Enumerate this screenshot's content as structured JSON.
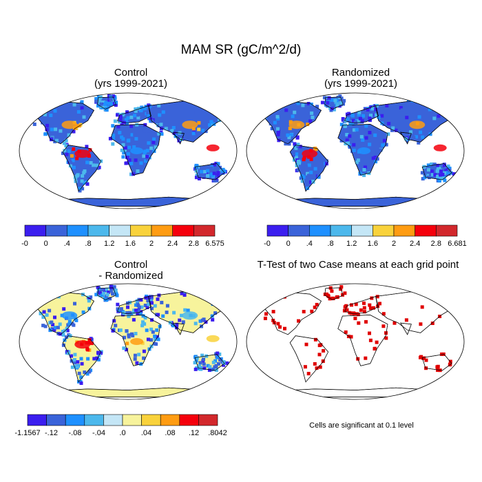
{
  "figure": {
    "title": "MAM SR (gC/m^2/d)",
    "note": "Cells are significant at 0.1 level"
  },
  "panels": [
    {
      "title": "Control",
      "subtitle": "(yrs 1999-2021)"
    },
    {
      "title": "Randomized",
      "subtitle": "(yrs 1999-2021)"
    },
    {
      "title": "Control",
      "subtitle": "- Randomized"
    },
    {
      "title": "T-Test of two Case means at each grid point",
      "subtitle": ""
    }
  ],
  "colors": {
    "abs_scale": [
      "#3b1eef",
      "#3a63d9",
      "#1e90ff",
      "#4cb8ec",
      "#c4e6f6",
      "#f9d23b",
      "#ff9c12",
      "#f5000c",
      "#d2282c"
    ],
    "diff_scale": [
      "#3b1eef",
      "#3a63d9",
      "#1e90ff",
      "#4cb8ec",
      "#c4e6f6",
      "#f7f39c",
      "#f9d23b",
      "#ff9c12",
      "#f5000c",
      "#d2282c"
    ],
    "significance": "#e00000",
    "antarctica_abs": "#3a63d9",
    "antarctica_diff": "#f7f39c"
  },
  "chart_data": [
    {
      "type": "heatmap",
      "title": "Control",
      "subtitle": "(yrs 1999-2021)",
      "colorbar_labels": [
        "-0",
        "0",
        ".4",
        ".8",
        "1.2",
        "1.6",
        "2",
        "2.4",
        "2.8",
        "6.575"
      ]
    },
    {
      "type": "heatmap",
      "title": "Randomized",
      "subtitle": "(yrs 1999-2021)",
      "colorbar_labels": [
        "-0",
        "0",
        ".4",
        ".8",
        "1.2",
        "1.6",
        "2",
        "2.4",
        "2.8",
        "6.681"
      ]
    },
    {
      "type": "heatmap",
      "title": "Control",
      "subtitle": "- Randomized",
      "colorbar_labels": [
        "-1.1567",
        "-.12",
        "-.08",
        "-.04",
        ".0",
        ".04",
        ".08",
        ".12",
        ".8042"
      ]
    },
    {
      "type": "heatmap",
      "title": "T-Test of two Case means at each grid point",
      "legend": "Cells are significant at 0.1 level"
    }
  ]
}
